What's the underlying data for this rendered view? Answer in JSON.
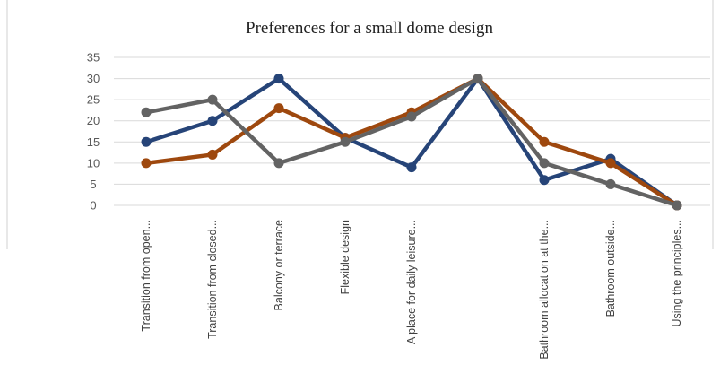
{
  "chart_data": {
    "type": "line",
    "title": "Preferences for a small dome design",
    "xlabel": "",
    "ylabel": "",
    "ylim": [
      0,
      35
    ],
    "yticks": [
      0,
      5,
      10,
      15,
      20,
      25,
      30,
      35
    ],
    "grid": true,
    "legend": "none",
    "categories": [
      "Transition from open...",
      "Transition from closed...",
      "Balcony or terrace",
      "Flexible design",
      "A place for daily leisure...",
      "",
      "Bathroom allocation at the...",
      "Bathroom outside...",
      "Using the principles..."
    ],
    "series": [
      {
        "color": "#264478",
        "values": [
          15,
          20,
          30,
          16,
          9,
          30,
          6,
          11,
          0
        ]
      },
      {
        "color": "#9e480e",
        "values": [
          10,
          12,
          23,
          16,
          22,
          30,
          15,
          10,
          0
        ]
      },
      {
        "color": "#636363",
        "values": [
          22,
          25,
          10,
          15,
          21,
          30,
          10,
          5,
          0
        ]
      }
    ]
  }
}
